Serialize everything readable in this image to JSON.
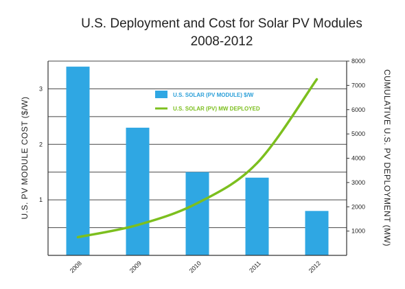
{
  "chart_data": {
    "type": "bar+line",
    "title": "U.S. Deployment and Cost for Solar PV Modules",
    "subtitle": "2008-2012",
    "categories": [
      "2008",
      "2009",
      "2010",
      "2011",
      "2012"
    ],
    "series": [
      {
        "name": "U.S. SOLAR (PV MODULE) $/W",
        "type": "bar",
        "axis": "left",
        "color": "#2fa7e3",
        "values": [
          3.4,
          2.3,
          1.5,
          1.4,
          0.8
        ]
      },
      {
        "name": "U.S. SOLAR (PV) MW DEPLOYED",
        "type": "line",
        "axis": "right",
        "color": "#7cbf1e",
        "values": [
          750,
          1250,
          2150,
          3800,
          7250
        ]
      }
    ],
    "ylabel_left": "U.S. PV MODULE COST ($/W)",
    "ylabel_right": "CUMULATIVE U.S. PV DEPLOYMENT (MW)",
    "ylim_left": [
      0,
      3.5
    ],
    "yticks_left": [
      1,
      2,
      3
    ],
    "ylim_right": [
      0,
      8000
    ],
    "yticks_right": [
      1000,
      2000,
      3000,
      4000,
      5000,
      6000,
      7000,
      8000
    ],
    "grid": true,
    "legend_position": "top-center"
  }
}
